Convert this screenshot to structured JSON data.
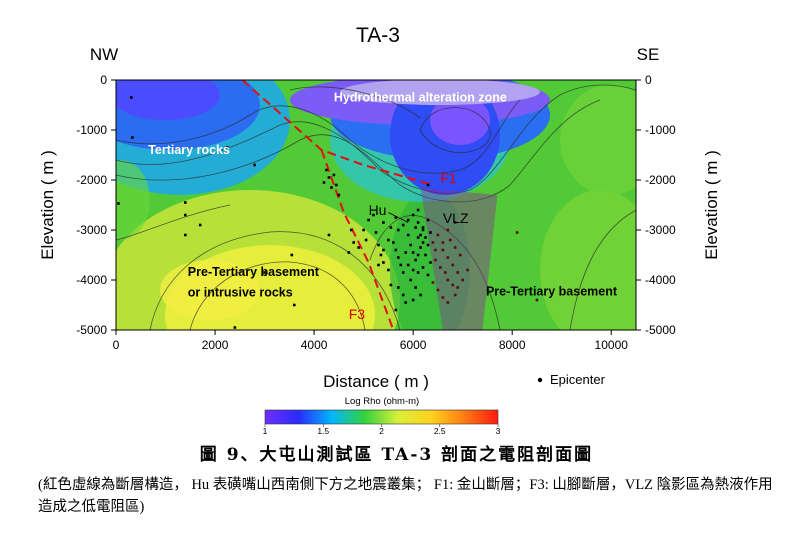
{
  "chart_data": {
    "type": "heatmap",
    "title": "TA-3",
    "left_label": "NW",
    "right_label": "SE",
    "xlabel": "Distance ( m )",
    "ylabel": "Elevation ( m )",
    "xlim": [
      0,
      10500
    ],
    "ylim": [
      -5000,
      0
    ],
    "x_ticks": [
      0,
      2000,
      4000,
      6000,
      8000,
      10000
    ],
    "y_ticks": [
      0,
      -1000,
      -2000,
      -3000,
      -4000,
      -5000
    ],
    "x_tick_labels": [
      "0",
      "2000",
      "4000",
      "6000",
      "8000",
      "10000"
    ],
    "y_tick_labels": [
      "0",
      "-1000",
      "-2000",
      "-3000",
      "-4000",
      "-5000"
    ],
    "colorbar": {
      "title": "Log Rho (ohm-m)",
      "range": [
        1,
        3
      ],
      "ticks": [
        "1",
        "1.5",
        "2",
        "2.5",
        "3"
      ],
      "colors": [
        "#7030ff",
        "#2a2aff",
        "#00b6ff",
        "#34d23b",
        "#d8ef3a",
        "#ffd21e",
        "#ff7a12",
        "#ff1a10"
      ]
    },
    "annotations": [
      {
        "text": "Hydrothermal alteration zone",
        "x": 4400,
        "y": -350,
        "color": "#ffffff"
      },
      {
        "text": "Tertiary rocks",
        "x": 650,
        "y": -1400,
        "color": "#ffffff"
      },
      {
        "text": "F1",
        "x": 6550,
        "y": -1980,
        "color": "#e00000"
      },
      {
        "text": "Hu",
        "x": 5100,
        "y": -2620,
        "color": "#000000"
      },
      {
        "text": "VLZ",
        "x": 6600,
        "y": -2780,
        "color": "#000000"
      },
      {
        "text": "Pre-Tertiary basement",
        "x": 1450,
        "y": -3840,
        "color": "#000000"
      },
      {
        "text": "or intrusive rocks",
        "x": 1450,
        "y": -4250,
        "color": "#000000"
      },
      {
        "text": "Pre-Tertiary basement",
        "x": 7470,
        "y": -4230,
        "color": "#000000"
      },
      {
        "text": "F3",
        "x": 4700,
        "y": -4700,
        "color": "#e00000"
      }
    ],
    "legend": {
      "marker": "•",
      "label": "Epicenter"
    },
    "faults": [
      {
        "name": "F1",
        "points": [
          [
            2550,
            0
          ],
          [
            4150,
            -1400
          ],
          [
            5000,
            -1700
          ],
          [
            6400,
            -2100
          ]
        ]
      },
      {
        "name": "F3",
        "points": [
          [
            4150,
            -1400
          ],
          [
            4600,
            -2650
          ],
          [
            5100,
            -3650
          ],
          [
            5600,
            -5000
          ]
        ]
      }
    ],
    "vlz_polygon": [
      [
        6150,
        -2150
      ],
      [
        7700,
        -2300
      ],
      [
        7400,
        -5000
      ],
      [
        6600,
        -5000
      ]
    ],
    "epicenters": [
      [
        310,
        -350
      ],
      [
        330,
        -1150
      ],
      [
        50,
        -2470
      ],
      [
        1400,
        -2450
      ],
      [
        1400,
        -2700
      ],
      [
        1400,
        -3100
      ],
      [
        2250,
        -1350
      ],
      [
        2800,
        -1700
      ],
      [
        1700,
        -2900
      ],
      [
        3000,
        -3850
      ],
      [
        3550,
        -3500
      ],
      [
        3600,
        -4500
      ],
      [
        2400,
        -4950
      ],
      [
        8500,
        -4400
      ],
      [
        8100,
        -3050
      ],
      [
        7100,
        -3800
      ],
      [
        6300,
        -2100
      ],
      [
        4250,
        -1800
      ],
      [
        4300,
        -1950
      ],
      [
        4200,
        -2050
      ],
      [
        4350,
        -2150
      ],
      [
        4400,
        -1900
      ],
      [
        4450,
        -2100
      ],
      [
        4500,
        -2300
      ],
      [
        4300,
        -3100
      ],
      [
        4750,
        -3000
      ],
      [
        4800,
        -3250
      ],
      [
        4700,
        -3450
      ],
      [
        4900,
        -3350
      ],
      [
        5000,
        -3000
      ],
      [
        5050,
        -3200
      ],
      [
        5250,
        -3050
      ],
      [
        5300,
        -3300
      ],
      [
        5350,
        -3500
      ],
      [
        5400,
        -3650
      ],
      [
        5500,
        -3800
      ],
      [
        5550,
        -4100
      ],
      [
        5700,
        -4150
      ],
      [
        5800,
        -4300
      ],
      [
        5850,
        -4450
      ],
      [
        5500,
        -3200
      ],
      [
        5600,
        -3250
      ],
      [
        5650,
        -3400
      ],
      [
        5700,
        -3550
      ],
      [
        5750,
        -3700
      ],
      [
        5800,
        -3850
      ],
      [
        5850,
        -3450
      ],
      [
        5900,
        -3100
      ],
      [
        5950,
        -3300
      ],
      [
        6000,
        -3450
      ],
      [
        6050,
        -3600
      ],
      [
        6100,
        -3150
      ],
      [
        6150,
        -3350
      ],
      [
        6200,
        -3000
      ],
      [
        6250,
        -3150
      ],
      [
        6300,
        -3300
      ],
      [
        6350,
        -3050
      ],
      [
        6400,
        -3250
      ],
      [
        6450,
        -3400
      ],
      [
        6050,
        -2950
      ],
      [
        6100,
        -2850
      ],
      [
        6200,
        -2950
      ],
      [
        6300,
        -2800
      ],
      [
        6150,
        -3100
      ],
      [
        6250,
        -3500
      ],
      [
        6350,
        -3650
      ],
      [
        6450,
        -3600
      ],
      [
        6550,
        -3750
      ],
      [
        6650,
        -3850
      ],
      [
        6700,
        -4000
      ],
      [
        6800,
        -4100
      ],
      [
        6600,
        -3400
      ],
      [
        6700,
        -3550
      ],
      [
        6800,
        -3700
      ],
      [
        6900,
        -3850
      ],
      [
        7000,
        -4000
      ],
      [
        6500,
        -3100
      ],
      [
        6600,
        -3250
      ],
      [
        6750,
        -3200
      ],
      [
        6850,
        -3350
      ],
      [
        6950,
        -3500
      ],
      [
        6700,
        -3000
      ],
      [
        6850,
        -2850
      ],
      [
        5950,
        -4000
      ],
      [
        6050,
        -4150
      ],
      [
        6100,
        -3850
      ],
      [
        6200,
        -3750
      ],
      [
        6300,
        -3900
      ],
      [
        6400,
        -4050
      ],
      [
        6500,
        -4200
      ],
      [
        6600,
        -4350
      ],
      [
        6700,
        -4450
      ],
      [
        6850,
        -4300
      ],
      [
        6900,
        -4150
      ],
      [
        5700,
        -3000
      ],
      [
        5800,
        -2900
      ],
      [
        5900,
        -2800
      ],
      [
        6000,
        -2700
      ],
      [
        6100,
        -2600
      ],
      [
        5650,
        -2750
      ],
      [
        5550,
        -2950
      ],
      [
        5400,
        -3400
      ],
      [
        5300,
        -3700
      ],
      [
        5900,
        -3700
      ],
      [
        6000,
        -3800
      ],
      [
        6150,
        -4300
      ],
      [
        6000,
        -4400
      ],
      [
        5200,
        -2700
      ],
      [
        5100,
        -2800
      ],
      [
        5400,
        -2850
      ],
      [
        5650,
        -4600
      ],
      [
        6100,
        -3500
      ],
      [
        6200,
        -3250
      ]
    ]
  },
  "caption": {
    "title": "圖 9、大屯山測試區 TA-3 剖面之電阻剖面圖",
    "note": "(紅色虛線為斷層構造，  Hu 表磺嘴山西南側下方之地震叢集；  F1:  金山斷層；F3:  山腳斷層，VLZ 陰影區為熱液作用造成之低電阻區)"
  }
}
